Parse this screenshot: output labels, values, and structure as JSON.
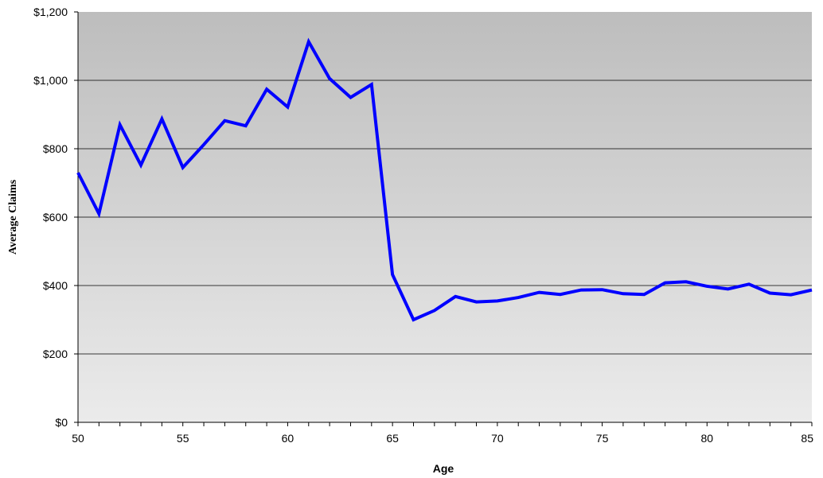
{
  "chart_data": {
    "type": "line",
    "title": "",
    "xlabel": "Age",
    "ylabel": "Average Claims",
    "xlim": [
      50,
      85
    ],
    "ylim": [
      0,
      1200
    ],
    "x_ticks": [
      50,
      55,
      60,
      65,
      70,
      75,
      80,
      85
    ],
    "y_ticks": [
      0,
      200,
      400,
      600,
      800,
      1000,
      1200
    ],
    "y_tick_labels": [
      "$0",
      "$200",
      "$400",
      "$600",
      "$800",
      "$1,000",
      "$1,200"
    ],
    "grid": "horizontal",
    "legend": "none",
    "background": "gradient gray (darker at top)",
    "series": [
      {
        "color": "#0000ff",
        "x": [
          50,
          51,
          52,
          53,
          54,
          55,
          56,
          57,
          58,
          59,
          60,
          61,
          62,
          63,
          64,
          65,
          66,
          67,
          68,
          69,
          70,
          71,
          72,
          73,
          74,
          75,
          76,
          77,
          78,
          79,
          80,
          81,
          82,
          83,
          84,
          85
        ],
        "values": [
          730,
          610,
          870,
          752,
          887,
          745,
          812,
          882,
          867,
          974,
          922,
          1113,
          1005,
          950,
          988,
          432,
          300,
          327,
          368,
          352,
          355,
          365,
          380,
          374,
          387,
          388,
          376,
          374,
          408,
          411,
          398,
          390,
          404,
          378,
          373,
          387
        ]
      }
    ]
  }
}
